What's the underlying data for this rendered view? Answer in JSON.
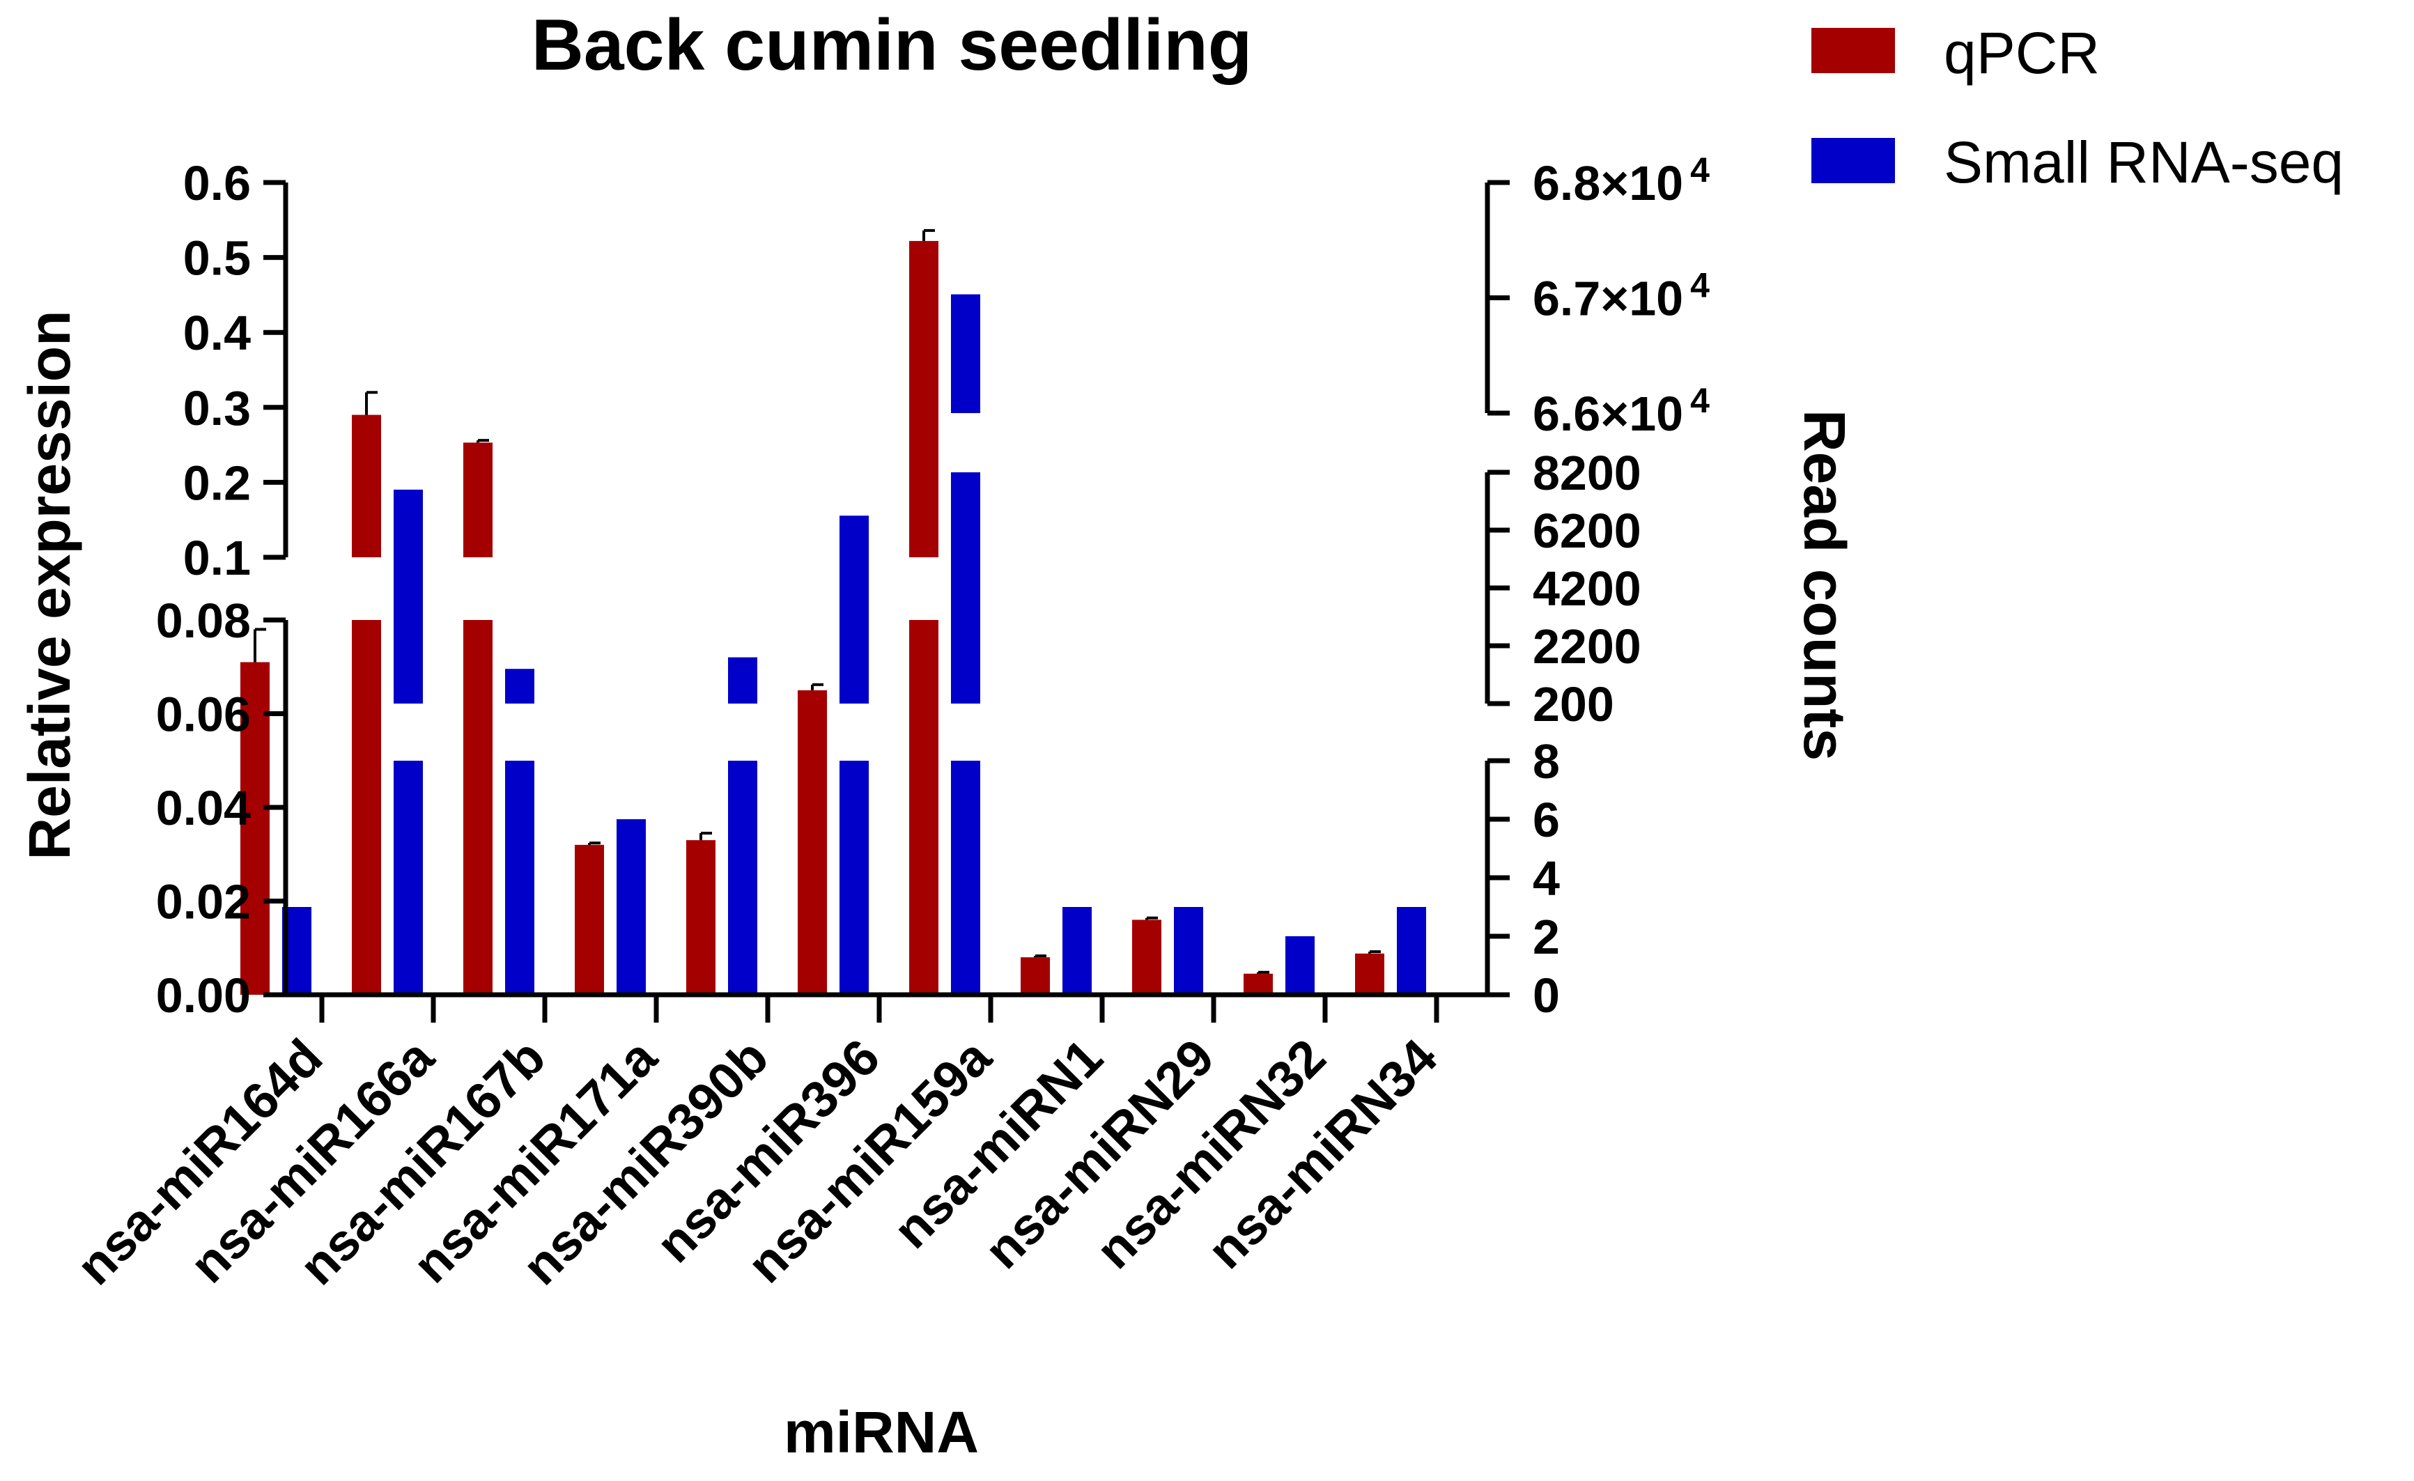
{
  "chart_data": {
    "type": "bar",
    "title": "Back cumin seedling",
    "xlabel": "miRNA",
    "ylabel": "Relative expression",
    "y2label": "Read counts",
    "categories": [
      "nsa-miR164d",
      "nsa-miR166a",
      "nsa-miR167b",
      "nsa-miR171a",
      "nsa-miR390b",
      "nsa-miR396",
      "nsa-miR159a",
      "nsa-miRN1",
      "nsa-miRN29",
      "nsa-miRN32",
      "nsa-miRN34"
    ],
    "series": [
      {
        "name": "qPCR",
        "color": "#a50000",
        "axis": "left",
        "values": [
          0.071,
          0.29,
          0.253,
          0.032,
          0.033,
          0.065,
          0.522,
          0.008,
          0.016,
          0.0045,
          0.0088
        ],
        "errors": [
          0.007,
          0.03,
          0.003,
          0.0004,
          0.0015,
          0.0012,
          0.014,
          0.0003,
          0.0004,
          0.0003,
          0.0004
        ]
      },
      {
        "name": "Small RNA-seq",
        "color": "#0000c8",
        "axis": "right",
        "values": [
          3,
          7600,
          1400,
          6,
          1800,
          6700,
          67030,
          3,
          3,
          2,
          3
        ]
      }
    ],
    "left_axis": {
      "segments": [
        {
          "range": [
            0,
            0.08
          ],
          "ticks": [
            0,
            0.02,
            0.04,
            0.06,
            0.08
          ],
          "tick_labels": [
            "0.00",
            "0.02",
            "0.04",
            "0.06",
            "0.08"
          ]
        },
        {
          "range": [
            0.1,
            0.6
          ],
          "ticks": [
            0.1,
            0.2,
            0.3,
            0.4,
            0.5,
            0.6
          ],
          "tick_labels": [
            "0.1",
            "0.2",
            "0.3",
            "0.4",
            "0.5",
            "0.6"
          ]
        }
      ]
    },
    "right_axis": {
      "segments": [
        {
          "range": [
            0,
            8
          ],
          "ticks": [
            0,
            2,
            4,
            6,
            8
          ],
          "tick_labels": [
            "0",
            "2",
            "4",
            "6",
            "8"
          ]
        },
        {
          "range": [
            200,
            8200
          ],
          "ticks": [
            200,
            2200,
            4200,
            6200,
            8200
          ],
          "tick_labels": [
            "200",
            "2200",
            "4200",
            "6200",
            "8200"
          ]
        },
        {
          "range": [
            66000,
            68000
          ],
          "ticks": [
            66000,
            67000,
            68000
          ],
          "tick_labels": [
            "6.6×10",
            "6.7×10",
            "6.8×10"
          ],
          "tick_exponent": "4"
        }
      ]
    },
    "legend": {
      "position": "top-right"
    }
  }
}
